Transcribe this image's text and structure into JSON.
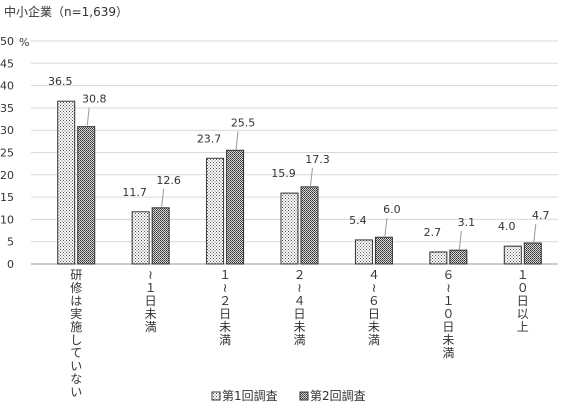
{
  "chart_data": {
    "type": "bar",
    "title": "中小企業（n=1,639）",
    "unit": "%",
    "ylim": [
      0,
      50
    ],
    "yticks": [
      0,
      5,
      10,
      15,
      20,
      25,
      30,
      35,
      40,
      45,
      50
    ],
    "grid": true,
    "legend_position": "bottom",
    "categories": [
      "研修は実施していない",
      "~１日未満",
      "１~２日未満",
      "２~４日未満",
      "４~６日未満",
      "６~１０日未満",
      "１０日以上"
    ],
    "series": [
      {
        "name": "第1回調査",
        "values": [
          36.5,
          11.7,
          23.7,
          15.9,
          5.4,
          2.7,
          4.0
        ],
        "labels": [
          "36.5",
          "11.7",
          "23.7",
          "15.9",
          "5.4",
          "2.7",
          "4.0"
        ]
      },
      {
        "name": "第2回調査",
        "values": [
          30.8,
          12.6,
          25.5,
          17.3,
          6.0,
          3.1,
          4.7
        ],
        "labels": [
          "30.8",
          "12.6",
          "25.5",
          "17.3",
          "6.0",
          "3.1",
          "4.7"
        ]
      }
    ]
  }
}
